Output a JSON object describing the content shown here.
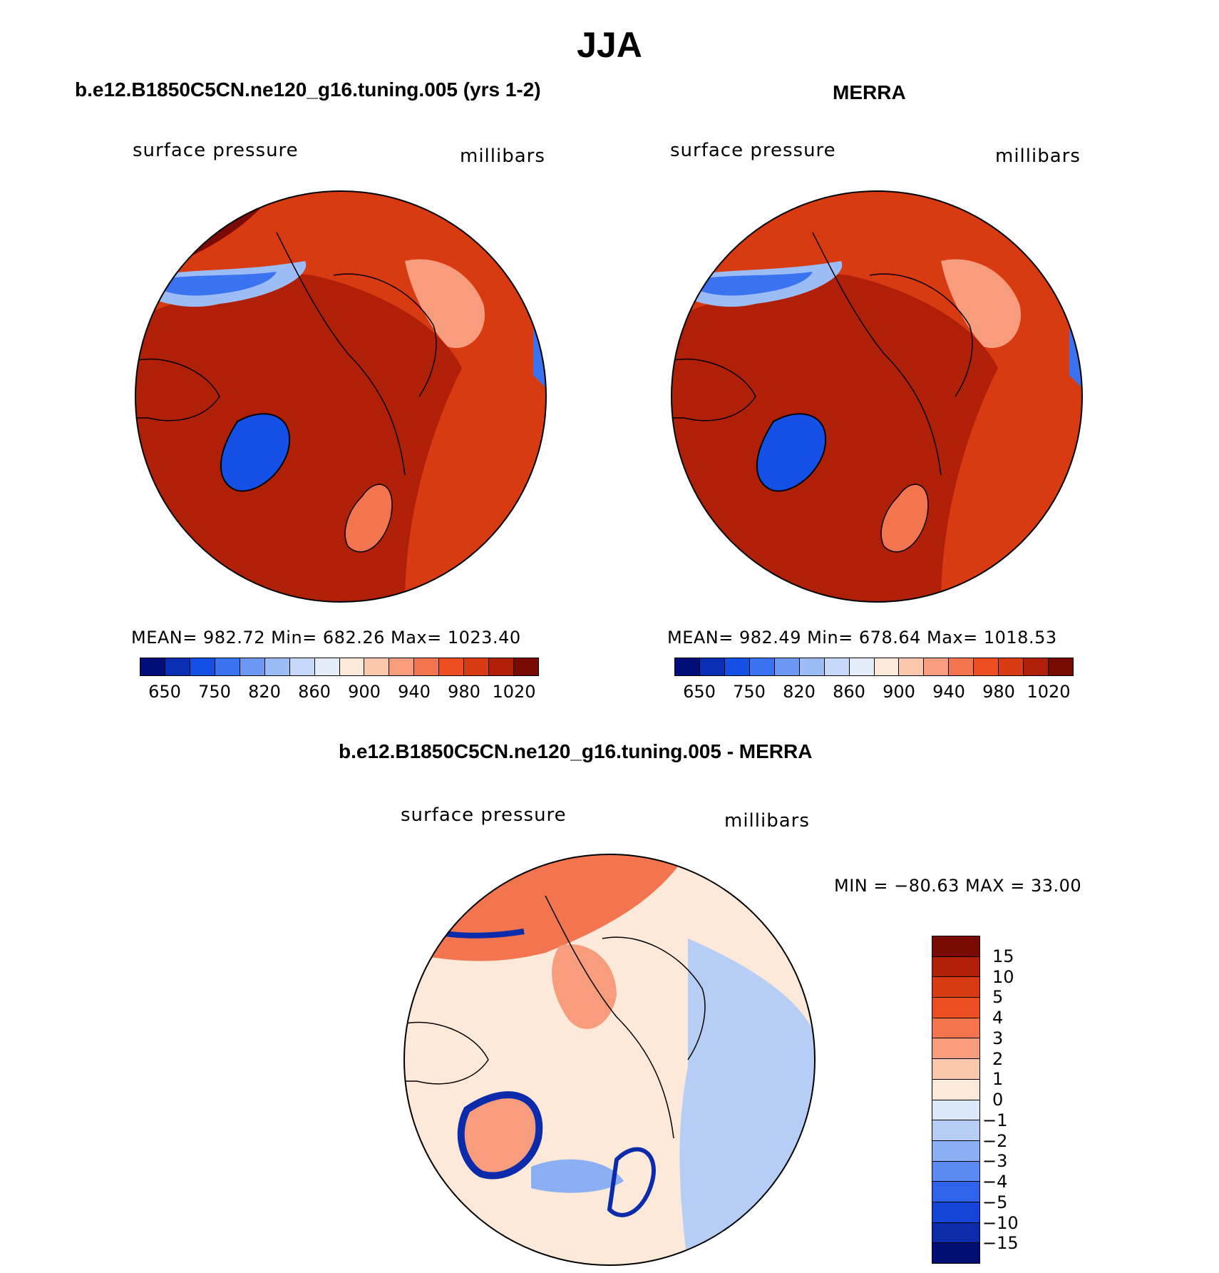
{
  "figure": {
    "title": "JJA"
  },
  "panels": {
    "model": {
      "title": "b.e12.B1850C5CN.ne120_g16.tuning.005 (yrs 1-2)",
      "variable": "surface pressure",
      "units": "millibars",
      "stats": "MEAN= 982.72   Min= 682.26   Max= 1023.40"
    },
    "obs": {
      "title": "MERRA",
      "variable": "surface pressure",
      "units": "millibars",
      "stats": "MEAN= 982.49   Min= 678.64   Max= 1018.53"
    },
    "diff": {
      "title": "b.e12.B1850C5CN.ne120_g16.tuning.005 - MERRA",
      "variable": "surface pressure",
      "units": "millibars",
      "stats": "MIN = −80.63 MAX =   33.00"
    }
  },
  "colorbars": {
    "abs": {
      "colors": [
        "#000e7a",
        "#0a2fb5",
        "#1550e6",
        "#3a73f0",
        "#6a98f2",
        "#9cbcf5",
        "#c6d9f8",
        "#e4eefb",
        "#fde9da",
        "#fbc8ad",
        "#f79c7c",
        "#f2754f",
        "#ec4e22",
        "#d83a12",
        "#b02008",
        "#7a0b04"
      ],
      "tick_labels": [
        "650",
        "750",
        "820",
        "860",
        "900",
        "940",
        "980",
        "1020"
      ]
    },
    "diff": {
      "colors": [
        "#7a0b04",
        "#b02008",
        "#d83a12",
        "#ec4e22",
        "#f2754f",
        "#f79c7c",
        "#fbc8ad",
        "#fde9da",
        "#dbe8fa",
        "#b6cdf6",
        "#8aaff3",
        "#5a8bf0",
        "#2f63ea",
        "#1545d7",
        "#0c2bab",
        "#020f72"
      ],
      "tick_labels": [
        "15",
        "10",
        "5",
        "4",
        "3",
        "2",
        "1",
        "0",
        "−1",
        "−2",
        "−3",
        "−4",
        "−5",
        "−10",
        "−15"
      ]
    }
  },
  "map_colors": {
    "ocean_high": "#b02008",
    "land_mid": "#d83a12",
    "land_light": "#ec4e22",
    "highland": "#f79c7c",
    "ice_sheet": "#1550e6",
    "diff_base": "#fde9da",
    "diff_pos": "#f2754f",
    "diff_neg": "#8aaff3",
    "diff_strong_neg": "#0c2bab"
  }
}
